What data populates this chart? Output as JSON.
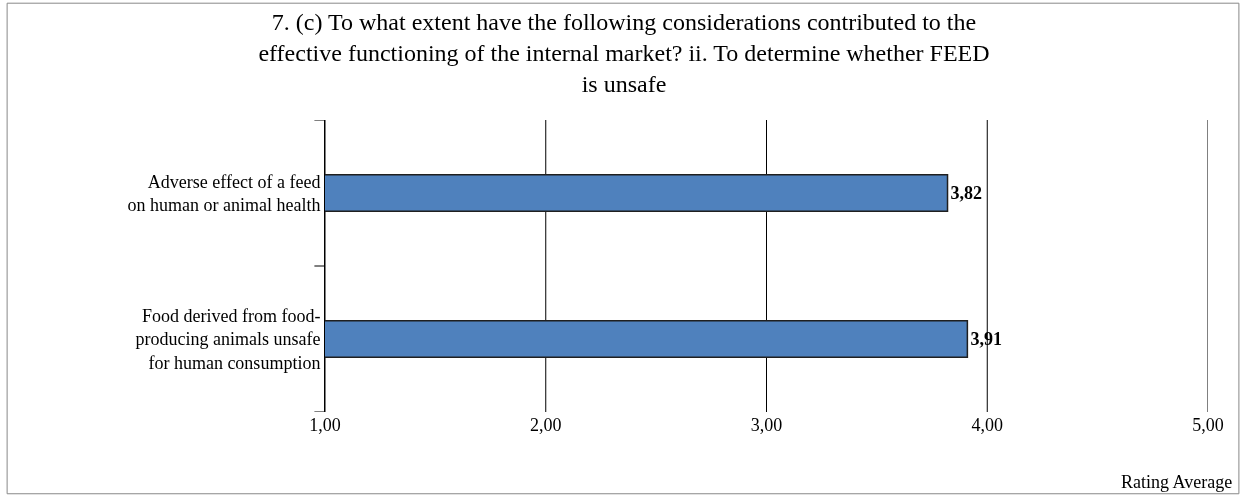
{
  "chart_data": {
    "type": "bar",
    "orientation": "horizontal",
    "title": "7. (c) To what extent have the following considerations contributed to the effective functioning of the internal market? ii. To determine whether FEED is unsafe",
    "xlabel": "Rating Average",
    "categories": [
      "Adverse effect of a feed on human or animal health",
      "Food derived from food-producing animals unsafe for human consumption"
    ],
    "values": [
      3.82,
      3.91
    ],
    "value_labels": [
      "3,82",
      "3,91"
    ],
    "color": "#4f81bd",
    "xlim": [
      1,
      5
    ],
    "xticks": [
      {
        "value": 1,
        "label": "1,00"
      },
      {
        "value": 2,
        "label": "2,00"
      },
      {
        "value": 3,
        "label": "3,00"
      },
      {
        "value": 4,
        "label": "4,00"
      },
      {
        "value": 5,
        "label": "5,00"
      }
    ],
    "grid": "x"
  }
}
